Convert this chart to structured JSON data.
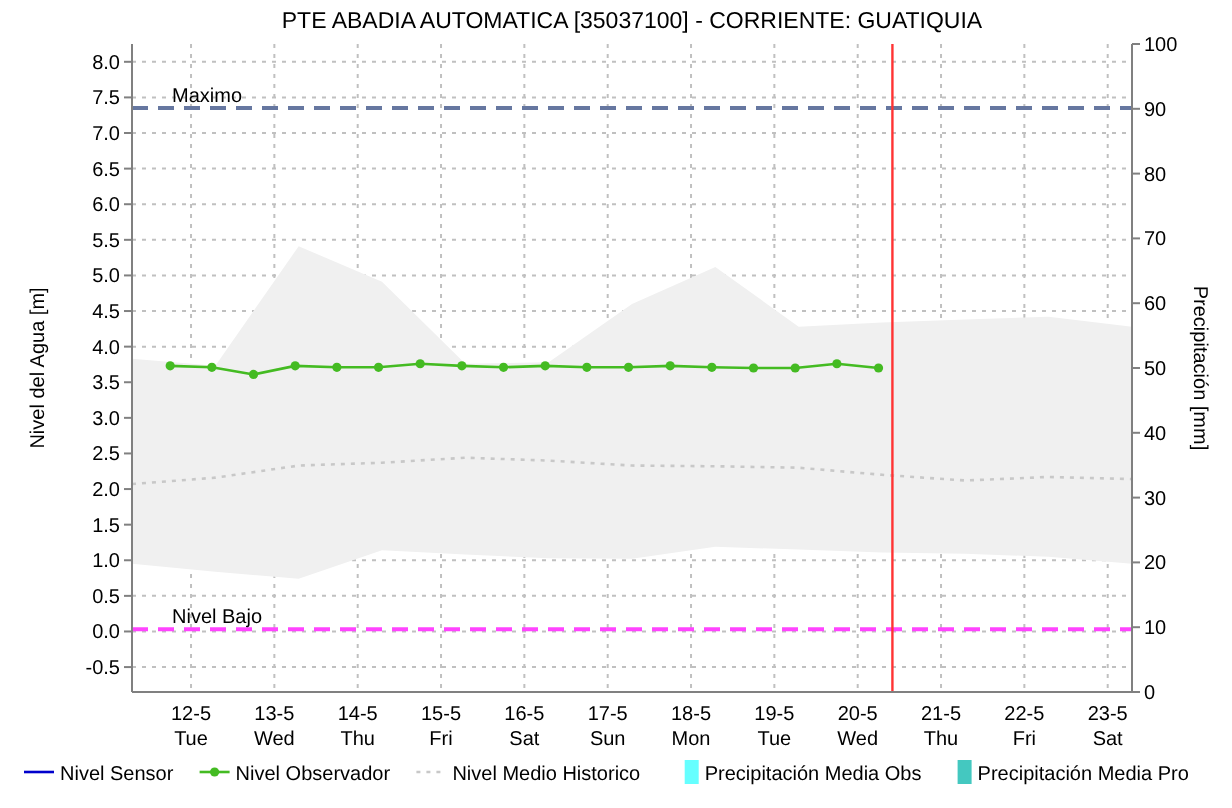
{
  "chart_data": {
    "type": "line",
    "title": "PTE ABADIA AUTOMATICA [35037100] - CORRIENTE: GUATIQUIA",
    "ylabel": "Nivel del Agua [m]",
    "y2label": "Precipitación [mm]",
    "xlim": [
      "--05-11T07:00",
      "--05-23T07:00"
    ],
    "xticks": [
      {
        "value": "--05-12",
        "label": "12-5\nTue"
      },
      {
        "value": "--05-13",
        "label": "13-5\nWed"
      },
      {
        "value": "--05-14",
        "label": "14-5\nThu"
      },
      {
        "value": "--05-15",
        "label": "15-5\nFri"
      },
      {
        "value": "--05-16",
        "label": "16-5\nSat"
      },
      {
        "value": "--05-17",
        "label": "17-5\nSun"
      },
      {
        "value": "--05-18",
        "label": "18-5\nMon"
      },
      {
        "value": "--05-19",
        "label": "19-5\nTue"
      },
      {
        "value": "--05-20",
        "label": "20-5\nWed"
      },
      {
        "value": "--05-21",
        "label": "21-5\nThu"
      },
      {
        "value": "--05-22",
        "label": "22-5\nFri"
      },
      {
        "value": "--05-23",
        "label": "23-5\nSat"
      }
    ],
    "ylim": [
      -0.85,
      8.25
    ],
    "yticks": [
      {
        "value": -0.5,
        "label": "-0.5"
      },
      {
        "value": 0,
        "label": "0.0"
      },
      {
        "value": 0.5,
        "label": "0.5"
      },
      {
        "value": 1,
        "label": "1.0"
      },
      {
        "value": 1.5,
        "label": "1.5"
      },
      {
        "value": 2,
        "label": "2.0"
      },
      {
        "value": 2.5,
        "label": "2.5"
      },
      {
        "value": 3,
        "label": "3.0"
      },
      {
        "value": 3.5,
        "label": "3.5"
      },
      {
        "value": 4,
        "label": "4.0"
      },
      {
        "value": 4.5,
        "label": "4.5"
      },
      {
        "value": 5,
        "label": "5.0"
      },
      {
        "value": 5.5,
        "label": "5.5"
      },
      {
        "value": 6,
        "label": "6.0"
      },
      {
        "value": 6.5,
        "label": "6.5"
      },
      {
        "value": 7,
        "label": "7.0"
      },
      {
        "value": 7.5,
        "label": "7.5"
      },
      {
        "value": 8,
        "label": "8.0"
      }
    ],
    "y2lim": [
      0,
      100
    ],
    "y2ticks": [
      0,
      10,
      20,
      30,
      40,
      50,
      60,
      70,
      80,
      90,
      100
    ],
    "grid": true,
    "legend": "bottom",
    "series": [
      {
        "name": "Nivel Sensor",
        "color": "#0000cc"
      },
      {
        "name": "Nivel Observador",
        "color": "#44bb22",
        "marker": "circle",
        "x": [
          "--05-11T18:00",
          "--05-12T06:00",
          "--05-12T18:00",
          "--05-13T06:00",
          "--05-13T18:00",
          "--05-14T06:00",
          "--05-14T18:00",
          "--05-15T06:00",
          "--05-15T18:00",
          "--05-16T06:00",
          "--05-16T18:00",
          "--05-17T06:00",
          "--05-17T18:00",
          "--05-18T06:00",
          "--05-18T18:00",
          "--05-19T06:00",
          "--05-19T18:00",
          "--05-20T06:00"
        ],
        "values": [
          3.73,
          3.71,
          3.61,
          3.73,
          3.71,
          3.71,
          3.76,
          3.73,
          3.71,
          3.73,
          3.71,
          3.71,
          3.73,
          3.71,
          3.7,
          3.7,
          3.76,
          3.7
        ]
      },
      {
        "name": "Nivel Medio Historico",
        "color": "#c8c8c8",
        "line_style": "dotted",
        "x": [
          "--05-11T07:00",
          "--05-12T07:00",
          "--05-13T07:00",
          "--05-14T07:00",
          "--05-15T07:00",
          "--05-16T07:00",
          "--05-17T07:00",
          "--05-18T07:00",
          "--05-19T07:00",
          "--05-20T07:00",
          "--05-21T07:00",
          "--05-22T07:00",
          "--05-23T07:00"
        ],
        "values": [
          2.07,
          2.16,
          2.33,
          2.37,
          2.44,
          2.4,
          2.33,
          2.32,
          2.3,
          2.2,
          2.12,
          2.17,
          2.14
        ],
        "lower": [
          0.95,
          0.84,
          0.74,
          1.14,
          1.08,
          1.03,
          1.02,
          1.19,
          1.15,
          1.11,
          1.09,
          1.05,
          0.95
        ],
        "upper": [
          3.83,
          3.73,
          5.41,
          4.91,
          3.76,
          3.78,
          4.6,
          5.12,
          4.28,
          4.34,
          4.38,
          4.42,
          4.28
        ]
      },
      {
        "name": "Precipitación Media Obs",
        "type": "bar",
        "color": "#66ffff"
      },
      {
        "name": "Precipitación Media Pro",
        "type": "bar",
        "color": "#44c8c0"
      }
    ],
    "ref_lines": [
      {
        "axis": "y",
        "value": 7.35,
        "label": "Maximo",
        "color": "#6677a0",
        "line_style": "dashed"
      },
      {
        "axis": "y",
        "value": 0.03,
        "label": "Nivel Bajo",
        "color": "#ff44ff",
        "line_style": "dashed"
      },
      {
        "axis": "x",
        "value": "--05-20T10:00",
        "label": null,
        "color": "#ff3333",
        "line_style": "solid"
      }
    ]
  }
}
